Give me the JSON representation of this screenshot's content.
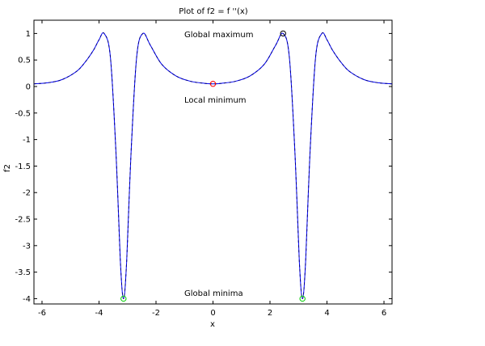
{
  "chart_data": {
    "type": "line",
    "title": "Plot of f2 = f ''(x)",
    "xlabel": "x",
    "ylabel": "f2",
    "xlim": [
      -6.283,
      6.283
    ],
    "ylim": [
      -4.1,
      1.25
    ],
    "grid": false,
    "x_ticks": [
      -6,
      -4,
      -2,
      0,
      2,
      4,
      6
    ],
    "x_tick_labels": [
      "-6",
      "-4",
      "-2",
      "0",
      "2",
      "4",
      "6"
    ],
    "y_ticks": [
      1,
      0.5,
      0,
      -0.5,
      -1,
      -1.5,
      -2,
      -2.5,
      -3,
      -3.5,
      -4
    ],
    "y_tick_labels": [
      "1",
      "0.5",
      "0",
      "-0.5",
      "-1",
      "-1.5",
      "-2",
      "-2.5",
      "-3",
      "-3.5",
      "-4"
    ],
    "series": [
      {
        "color": "#0000ff",
        "overlay_color": "#000080",
        "x": [
          -6.283,
          -5.8,
          -5.3,
          -4.8,
          -4.5,
          -4.2,
          -4.0,
          -3.82,
          -3.6,
          -3.4,
          -3.25,
          -3.14,
          -3.03,
          -2.88,
          -2.68,
          -2.46,
          -2.2,
          -1.8,
          -1.3,
          -0.8,
          -0.3,
          0,
          0.3,
          0.8,
          1.3,
          1.8,
          2.2,
          2.46,
          2.68,
          2.88,
          3.03,
          3.14,
          3.25,
          3.4,
          3.6,
          3.82,
          4.0,
          4.2,
          4.5,
          4.8,
          5.3,
          5.8,
          6.283
        ],
        "y": [
          0.05,
          0.07,
          0.13,
          0.28,
          0.45,
          0.68,
          0.88,
          1.0,
          0.55,
          -1.3,
          -3.3,
          -4.0,
          -3.3,
          -1.3,
          0.55,
          1.0,
          0.78,
          0.42,
          0.2,
          0.1,
          0.06,
          0.05,
          0.06,
          0.1,
          0.2,
          0.42,
          0.78,
          1.0,
          0.55,
          -1.3,
          -3.3,
          -4.0,
          -3.3,
          -1.3,
          0.55,
          1.0,
          0.88,
          0.68,
          0.45,
          0.28,
          0.13,
          0.07,
          0.05
        ]
      }
    ],
    "markers": [
      {
        "label": "Local minimum",
        "x": 0,
        "y": 0.05,
        "color": "#ff0000"
      },
      {
        "label": "Global maximum",
        "x": 2.46,
        "y": 1.0,
        "color": "#000000"
      },
      {
        "label": "Global minima",
        "x": -3.14,
        "y": -4.0,
        "color": "#00cc00"
      },
      {
        "label": "Global minima",
        "x": 3.14,
        "y": -4.0,
        "color": "#00cc00"
      }
    ],
    "annotations": [
      {
        "key": "global_max",
        "text": "Global maximum"
      },
      {
        "key": "local_min",
        "text": "Local minimum"
      },
      {
        "key": "global_min",
        "text": "Global minima"
      }
    ]
  }
}
